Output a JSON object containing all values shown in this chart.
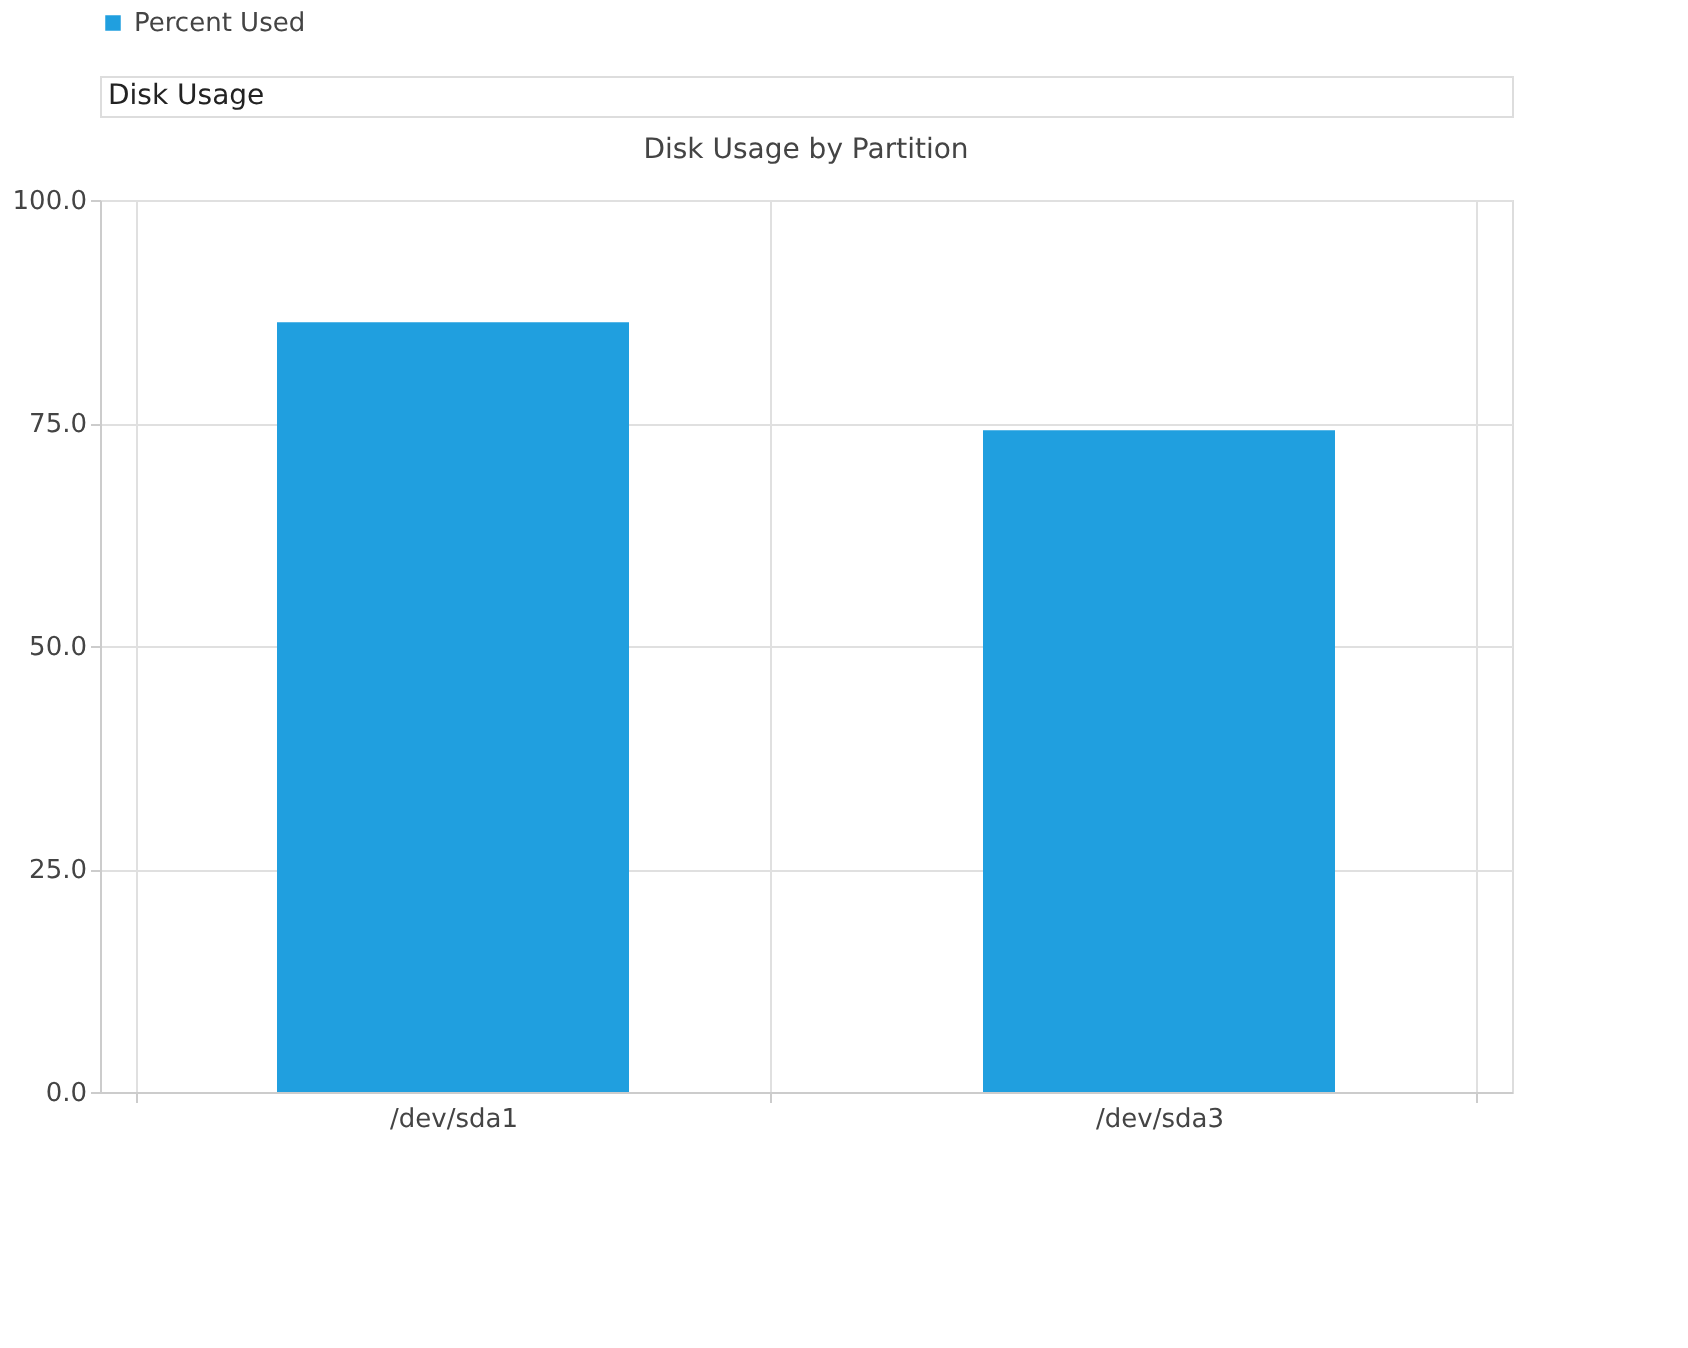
{
  "chart_data": {
    "type": "bar",
    "title": "Disk Usage by Partition",
    "annotations": [
      "Disk Usage"
    ],
    "categories": [
      "/dev/sda1",
      "/dev/sda3"
    ],
    "series": [
      {
        "name": "Percent Used",
        "color": "#209fdf",
        "values": [
          86.3,
          74.2
        ]
      }
    ],
    "ylim": [
      0,
      100
    ],
    "yticks": [
      {
        "value": 0,
        "label": "0.0"
      },
      {
        "value": 25,
        "label": "25.0"
      },
      {
        "value": 50,
        "label": "50.0"
      },
      {
        "value": 75,
        "label": "75.0"
      },
      {
        "value": 100,
        "label": "100.0"
      }
    ],
    "grid": true,
    "legend": "top"
  }
}
